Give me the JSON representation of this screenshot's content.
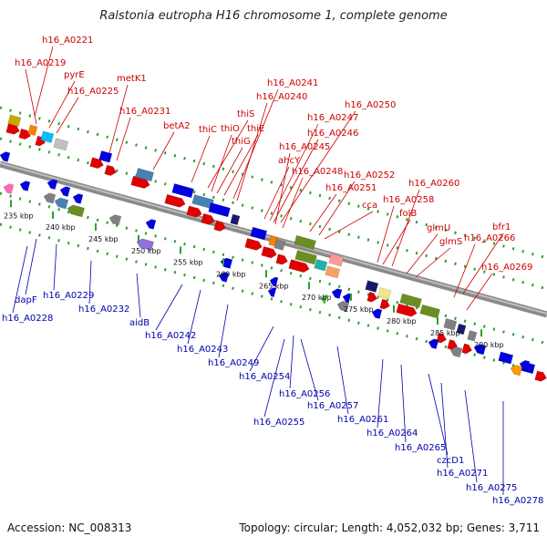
{
  "title": "Ralstonia eutropha H16 chromosome 1, complete genome",
  "footer": {
    "accession": "Accession: NC_008313",
    "topology": "Topology: circular; Length: 4,052,032 bp; Genes: 3,711"
  },
  "colors": {
    "fwd_label": "#cc0000",
    "rev_label": "#0000aa",
    "backbone": "#8a8a8a",
    "track_dots": "#2ca02c"
  },
  "ticks": [
    "235 kbp",
    "240 kbp",
    "245 kbp",
    "250 kbp",
    "255 kbp",
    "260 kbp",
    "265 kbp",
    "270 kbp",
    "275 kbp",
    "280 kbp",
    "285 kbp",
    "290 kbp"
  ],
  "forward_labels": [
    "h16_A0221",
    "h16_A0219",
    "pyrE",
    "h16_A0225",
    "metK1",
    "h16_A0231",
    "betA2",
    "thiC",
    "thiS",
    "thiO",
    "thiG",
    "thiE",
    "h16_A0241",
    "h16_A0240",
    "h16_A0250",
    "h16_A0247",
    "h16_A0246",
    "h16_A0245",
    "ahcY",
    "h16_A0248",
    "h16_A0252",
    "h16_A0251",
    "cca",
    "h16_A0258",
    "folB",
    "h16_A0260",
    "glmU",
    "glmS",
    "bfr1",
    "h16_A0266",
    "h16_A0269"
  ],
  "reverse_labels": [
    "dapF",
    "h16_A0229",
    "h16_A0228",
    "h16_A0232",
    "aidB",
    "h16_A0242",
    "h16_A0243",
    "h16_A0249",
    "h16_A0254",
    "h16_A0256",
    "h16_A0255",
    "h16_A0257",
    "h16_A0261",
    "h16_A0264",
    "h16_A0265",
    "czcD1",
    "h16_A0271",
    "h16_A0275",
    "h16_A0278"
  ]
}
